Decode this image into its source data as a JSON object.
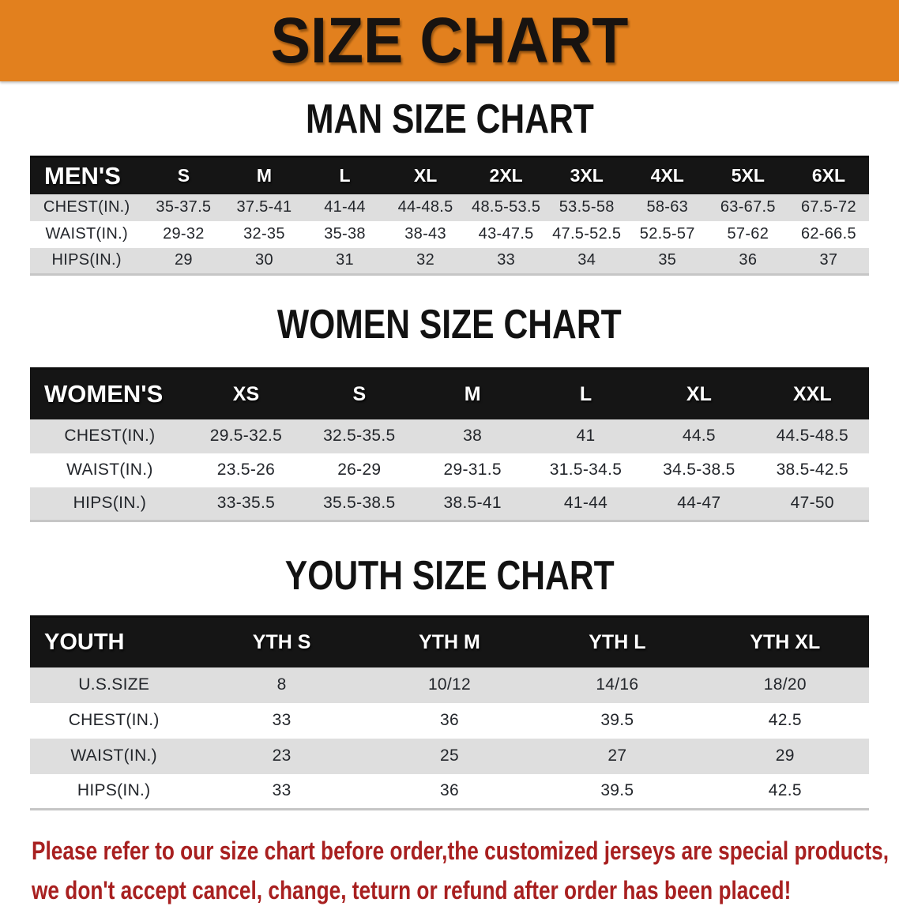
{
  "banner": {
    "title": "SIZE CHART",
    "bg_color": "#e2801e",
    "text_color": "#181310"
  },
  "sections": [
    {
      "id": "men",
      "heading": "MAN SIZE CHART",
      "table": {
        "header_label": "MEN'S",
        "columns": [
          "S",
          "M",
          "L",
          "XL",
          "2XL",
          "3XL",
          "4XL",
          "5XL",
          "6XL"
        ],
        "rows": [
          {
            "label": "CHEST(IN.)",
            "values": [
              "35-37.5",
              "37.5-41",
              "41-44",
              "44-48.5",
              "48.5-53.5",
              "53.5-58",
              "58-63",
              "63-67.5",
              "67.5-72"
            ]
          },
          {
            "label": "WAIST(IN.)",
            "values": [
              "29-32",
              "32-35",
              "35-38",
              "38-43",
              "43-47.5",
              "47.5-52.5",
              "52.5-57",
              "57-62",
              "62-66.5"
            ]
          },
          {
            "label": "HIPS(IN.)",
            "values": [
              "29",
              "30",
              "31",
              "32",
              "33",
              "34",
              "35",
              "36",
              "37"
            ]
          }
        ]
      }
    },
    {
      "id": "women",
      "heading": "WOMEN SIZE CHART",
      "table": {
        "header_label": "WOMEN'S",
        "columns": [
          "XS",
          "S",
          "M",
          "L",
          "XL",
          "XXL"
        ],
        "rows": [
          {
            "label": "CHEST(IN.)",
            "values": [
              "29.5-32.5",
              "32.5-35.5",
              "38",
              "41",
              "44.5",
              "44.5-48.5"
            ]
          },
          {
            "label": "WAIST(IN.)",
            "values": [
              "23.5-26",
              "26-29",
              "29-31.5",
              "31.5-34.5",
              "34.5-38.5",
              "38.5-42.5"
            ]
          },
          {
            "label": "HIPS(IN.)",
            "values": [
              "33-35.5",
              "35.5-38.5",
              "38.5-41",
              "41-44",
              "44-47",
              "47-50"
            ]
          }
        ]
      }
    },
    {
      "id": "youth",
      "heading": "YOUTH SIZE CHART",
      "table": {
        "header_label": "YOUTH",
        "columns": [
          "YTH S",
          "YTH M",
          "YTH L",
          "YTH XL"
        ],
        "rows": [
          {
            "label": "U.S.SIZE",
            "values": [
              "8",
              "10/12",
              "14/16",
              "18/20"
            ]
          },
          {
            "label": "CHEST(IN.)",
            "values": [
              "33",
              "36",
              "39.5",
              "42.5"
            ]
          },
          {
            "label": "WAIST(IN.)",
            "values": [
              "23",
              "25",
              "27",
              "29"
            ]
          },
          {
            "label": "HIPS(IN.)",
            "values": [
              "33",
              "36",
              "39.5",
              "42.5"
            ]
          }
        ]
      }
    }
  ],
  "footer_note": {
    "lines": [
      "Please refer to our size chart before order,the customized jerseys are special products,",
      "we don't accept cancel, change, teturn or refund after order has been placed!"
    ],
    "color": "#a82020"
  },
  "colors": {
    "banner_orange": "#e2801e",
    "header_bar_black": "#151515",
    "row_stripe_gray": "#dedede",
    "body_text": "#23262b",
    "warning_red": "#a82020"
  }
}
